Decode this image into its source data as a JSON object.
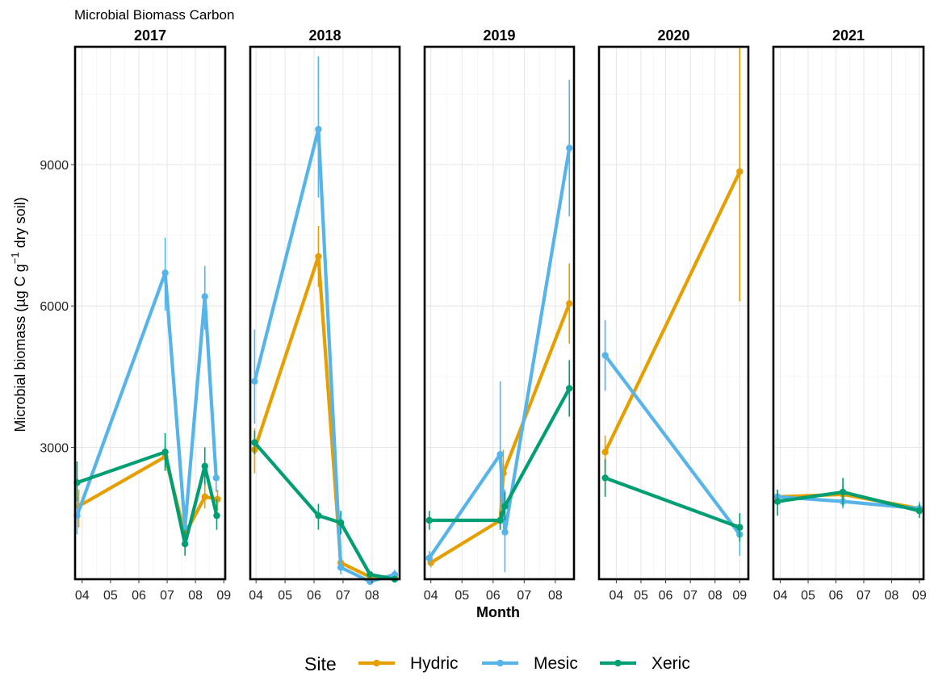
{
  "chart_data": {
    "type": "line",
    "title": "Microbial Biomass Carbon",
    "xlabel": "Month",
    "ylabel": "Microbial biomass (µg C g⁻¹ dry soil)",
    "ylim": [
      200,
      11500
    ],
    "yticks": [
      3000,
      6000,
      9000
    ],
    "grid": true,
    "legend": {
      "title": "Site",
      "position": "bottom"
    },
    "colors": {
      "Hydric": "#E69F00",
      "Mesic": "#56B4E9",
      "Xeric": "#009E73"
    },
    "panels": [
      {
        "label": "2017",
        "xlim": [
          3.75,
          9.05
        ],
        "xticks": [
          "04",
          "05",
          "06",
          "07",
          "08",
          "09"
        ],
        "series": [
          {
            "name": "Hydric",
            "points": [
              {
                "x": 3.88,
                "y": 1750,
                "lo": 1300,
                "hi": 2100
              },
              {
                "x": 6.93,
                "y": 2800,
                "lo": 2500,
                "hi": 3100
              },
              {
                "x": 7.63,
                "y": 1150,
                "lo": 850,
                "hi": 1450
              },
              {
                "x": 8.33,
                "y": 1950,
                "lo": 1700,
                "hi": 2200
              },
              {
                "x": 8.78,
                "y": 1900,
                "lo": 1650,
                "hi": 2100
              }
            ]
          },
          {
            "name": "Mesic",
            "points": [
              {
                "x": 3.82,
                "y": 1550,
                "lo": 1150,
                "hi": 1950
              },
              {
                "x": 6.93,
                "y": 6700,
                "lo": 5900,
                "hi": 7450
              },
              {
                "x": 7.63,
                "y": 1300,
                "lo": 1000,
                "hi": 1600
              },
              {
                "x": 8.33,
                "y": 6200,
                "lo": 5500,
                "hi": 6850
              },
              {
                "x": 8.73,
                "y": 2350,
                "lo": 2050,
                "hi": 2650
              }
            ]
          },
          {
            "name": "Xeric",
            "points": [
              {
                "x": 3.82,
                "y": 2250,
                "lo": 1850,
                "hi": 2700
              },
              {
                "x": 6.93,
                "y": 2900,
                "lo": 2500,
                "hi": 3300
              },
              {
                "x": 7.63,
                "y": 950,
                "lo": 700,
                "hi": 1250
              },
              {
                "x": 8.33,
                "y": 2600,
                "lo": 2200,
                "hi": 3000
              },
              {
                "x": 8.75,
                "y": 1550,
                "lo": 1250,
                "hi": 1900
              }
            ]
          }
        ]
      },
      {
        "label": "2018",
        "xlim": [
          3.8,
          8.95
        ],
        "xticks": [
          "04",
          "05",
          "06",
          "07",
          "08"
        ],
        "series": [
          {
            "name": "Hydric",
            "points": [
              {
                "x": 3.95,
                "y": 2950,
                "lo": 2450,
                "hi": 3400
              },
              {
                "x": 6.15,
                "y": 7050,
                "lo": 6400,
                "hi": 7700
              },
              {
                "x": 6.92,
                "y": 550,
                "lo": 400,
                "hi": 750
              },
              {
                "x": 7.93,
                "y": 250,
                "lo": 200,
                "hi": 300
              },
              {
                "x": 8.78,
                "y": 250,
                "lo": 200,
                "hi": 300
              }
            ]
          },
          {
            "name": "Mesic",
            "points": [
              {
                "x": 3.95,
                "y": 4400,
                "lo": 3500,
                "hi": 5500
              },
              {
                "x": 6.15,
                "y": 9750,
                "lo": 8300,
                "hi": 11300
              },
              {
                "x": 6.92,
                "y": 450,
                "lo": 300,
                "hi": 600
              },
              {
                "x": 7.93,
                "y": 150,
                "lo": 100,
                "hi": 200
              },
              {
                "x": 8.78,
                "y": 300,
                "lo": 200,
                "hi": 400
              }
            ]
          },
          {
            "name": "Xeric",
            "points": [
              {
                "x": 3.95,
                "y": 3100,
                "lo": 2850,
                "hi": 3350
              },
              {
                "x": 6.15,
                "y": 1550,
                "lo": 1250,
                "hi": 1800
              },
              {
                "x": 6.92,
                "y": 1400,
                "lo": 1150,
                "hi": 1650
              },
              {
                "x": 7.93,
                "y": 300,
                "lo": 250,
                "hi": 350
              },
              {
                "x": 8.78,
                "y": 200,
                "lo": 150,
                "hi": 250
              }
            ]
          }
        ]
      },
      {
        "label": "2019",
        "xlim": [
          3.8,
          8.6
        ],
        "xticks": [
          "04",
          "05",
          "06",
          "07",
          "08"
        ],
        "series": [
          {
            "name": "Hydric",
            "points": [
              {
                "x": 4.0,
                "y": 550,
                "lo": 450,
                "hi": 650
              },
              {
                "x": 6.23,
                "y": 1450,
                "lo": 1250,
                "hi": 1650
              },
              {
                "x": 6.33,
                "y": 2450,
                "lo": 1950,
                "hi": 2950
              },
              {
                "x": 8.45,
                "y": 6050,
                "lo": 5200,
                "hi": 6900
              }
            ]
          },
          {
            "name": "Mesic",
            "points": [
              {
                "x": 3.95,
                "y": 650,
                "lo": 500,
                "hi": 800
              },
              {
                "x": 6.23,
                "y": 2850,
                "lo": 1300,
                "hi": 4400
              },
              {
                "x": 6.38,
                "y": 1200,
                "lo": 350,
                "hi": 2100
              },
              {
                "x": 8.45,
                "y": 9350,
                "lo": 7900,
                "hi": 10800
              }
            ]
          },
          {
            "name": "Xeric",
            "points": [
              {
                "x": 3.95,
                "y": 1450,
                "lo": 1250,
                "hi": 1650
              },
              {
                "x": 6.23,
                "y": 1450,
                "lo": 1250,
                "hi": 1650
              },
              {
                "x": 6.38,
                "y": 1750,
                "lo": 1450,
                "hi": 2050
              },
              {
                "x": 8.45,
                "y": 4250,
                "lo": 3650,
                "hi": 4850
              }
            ]
          }
        ]
      },
      {
        "label": "2020",
        "xlim": [
          3.3,
          9.35
        ],
        "xticks": [
          "04",
          "05",
          "06",
          "07",
          "08",
          "09"
        ],
        "series": [
          {
            "name": "Hydric",
            "points": [
              {
                "x": 3.55,
                "y": 2900,
                "lo": 2500,
                "hi": 3250
              },
              {
                "x": 9.0,
                "y": 8850,
                "lo": 6100,
                "hi": 11600
              }
            ]
          },
          {
            "name": "Mesic",
            "points": [
              {
                "x": 3.55,
                "y": 4950,
                "lo": 4200,
                "hi": 5700
              },
              {
                "x": 9.0,
                "y": 1150,
                "lo": 700,
                "hi": 1600
              }
            ]
          },
          {
            "name": "Xeric",
            "points": [
              {
                "x": 3.55,
                "y": 2350,
                "lo": 1950,
                "hi": 2750
              },
              {
                "x": 9.0,
                "y": 1300,
                "lo": 1000,
                "hi": 1600
              }
            ]
          }
        ]
      },
      {
        "label": "2021",
        "xlim": [
          3.75,
          9.15
        ],
        "xticks": [
          "04",
          "05",
          "06",
          "07",
          "08",
          "09"
        ],
        "series": [
          {
            "name": "Hydric",
            "points": [
              {
                "x": 3.9,
                "y": 1950,
                "lo": 1800,
                "hi": 2100
              },
              {
                "x": 6.25,
                "y": 2000,
                "lo": 1800,
                "hi": 2200
              },
              {
                "x": 9.0,
                "y": 1700,
                "lo": 1600,
                "hi": 1800
              }
            ]
          },
          {
            "name": "Mesic",
            "points": [
              {
                "x": 3.9,
                "y": 1950,
                "lo": 1800,
                "hi": 2100
              },
              {
                "x": 6.25,
                "y": 1850,
                "lo": 1700,
                "hi": 2000
              },
              {
                "x": 9.0,
                "y": 1700,
                "lo": 1550,
                "hi": 1850
              }
            ]
          },
          {
            "name": "Xeric",
            "points": [
              {
                "x": 3.9,
                "y": 1850,
                "lo": 1550,
                "hi": 2100
              },
              {
                "x": 6.25,
                "y": 2050,
                "lo": 1750,
                "hi": 2350
              },
              {
                "x": 9.0,
                "y": 1650,
                "lo": 1500,
                "hi": 1800
              }
            ]
          }
        ]
      }
    ]
  },
  "legend": {
    "title": "Site",
    "items": [
      {
        "label": "Hydric",
        "color": "#E69F00"
      },
      {
        "label": "Mesic",
        "color": "#56B4E9"
      },
      {
        "label": "Xeric",
        "color": "#009E73"
      }
    ]
  }
}
